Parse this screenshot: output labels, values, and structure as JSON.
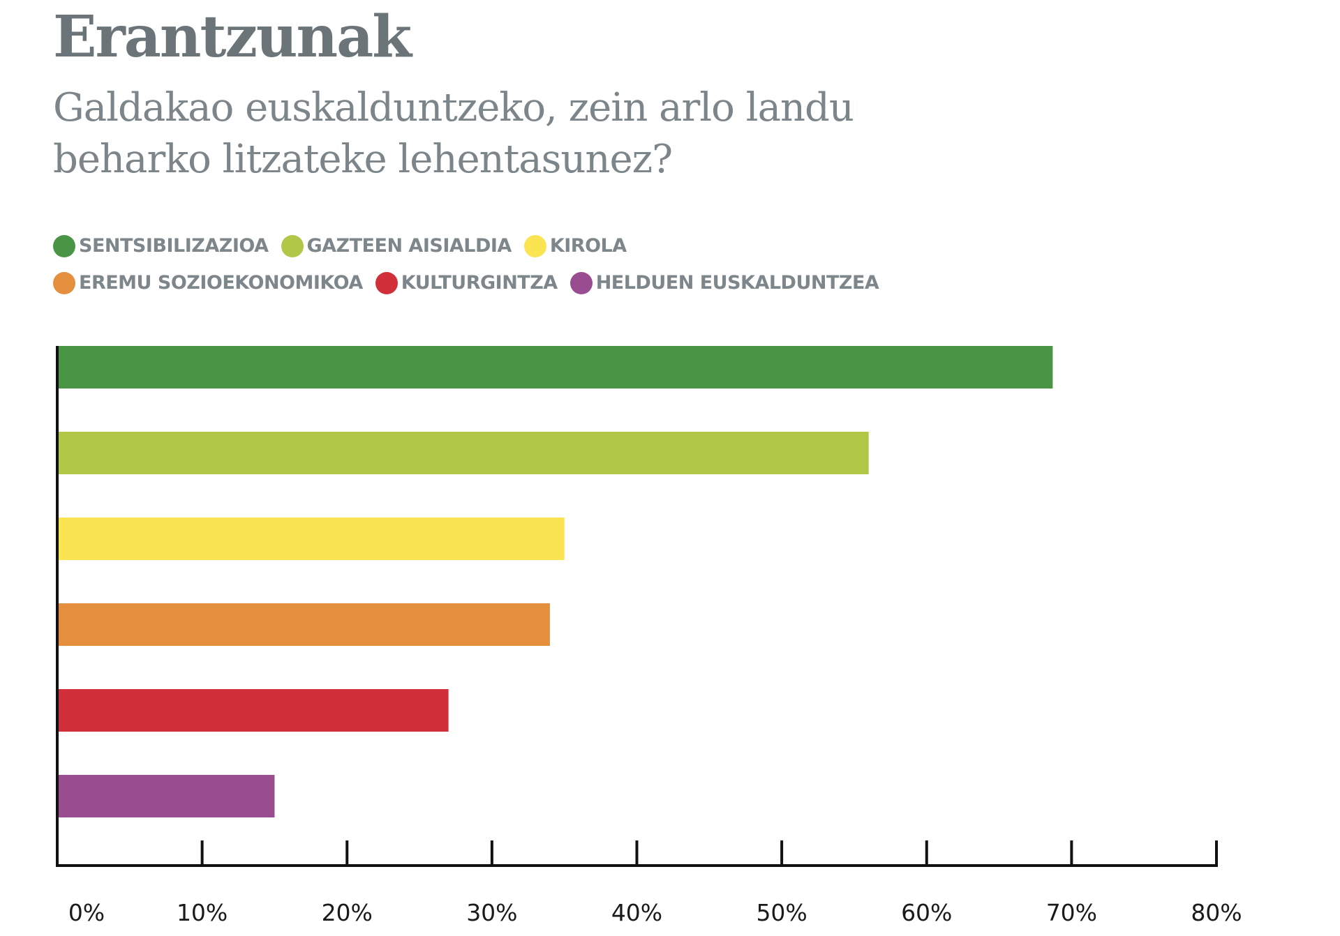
{
  "header": {
    "title": "Erantzunak",
    "subtitle_line1": "Galdakao euskalduntzeko, zein arlo landu",
    "subtitle_line2": "beharko litzateke lehentasunez?"
  },
  "chart_data": {
    "type": "bar",
    "orientation": "horizontal",
    "title": "Erantzunak",
    "subtitle": "Galdakao euskalduntzeko, zein arlo landu beharko litzateke lehentasunez?",
    "xlabel": "",
    "ylabel": "",
    "xlim": [
      0,
      80
    ],
    "grid": false,
    "legend_position": "top-left",
    "x_ticks": [
      "0%",
      "10%",
      "20%",
      "30%",
      "40%",
      "50%",
      "60%",
      "70%",
      "80%"
    ],
    "categories": [
      "SENTSIBILIZAZIOA",
      "GAZTEEN AISIALDIA",
      "KIROLA",
      "EREMU SOZIOEKONOMIKOA",
      "KULTURGINTZA",
      "HELDUEN EUSKALDUNTZEA"
    ],
    "values": [
      68.7,
      56,
      35,
      34,
      27,
      15
    ],
    "colors": [
      "#4a9446",
      "#b1c748",
      "#fbe452",
      "#e38f3e",
      "#d12f39",
      "#994c90"
    ]
  },
  "legend": {
    "rows": [
      [
        {
          "label": "SENTSIBILIZAZIOA",
          "color": "#4a9446"
        },
        {
          "label": "GAZTEEN AISIALDIA",
          "color": "#b1c748"
        },
        {
          "label": "KIROLA",
          "color": "#fbe452"
        }
      ],
      [
        {
          "label": "EREMU SOZIOEKONOMIKOA",
          "color": "#e38f3e"
        },
        {
          "label": "KULTURGINTZA",
          "color": "#d12f39"
        },
        {
          "label": "HELDUEN EUSKALDUNTZEA",
          "color": "#994c90"
        }
      ]
    ]
  },
  "colors": {
    "title": "#6a7479",
    "subtitle": "#7b858a",
    "legend_text": "#7d868b",
    "axis": "#111111"
  }
}
